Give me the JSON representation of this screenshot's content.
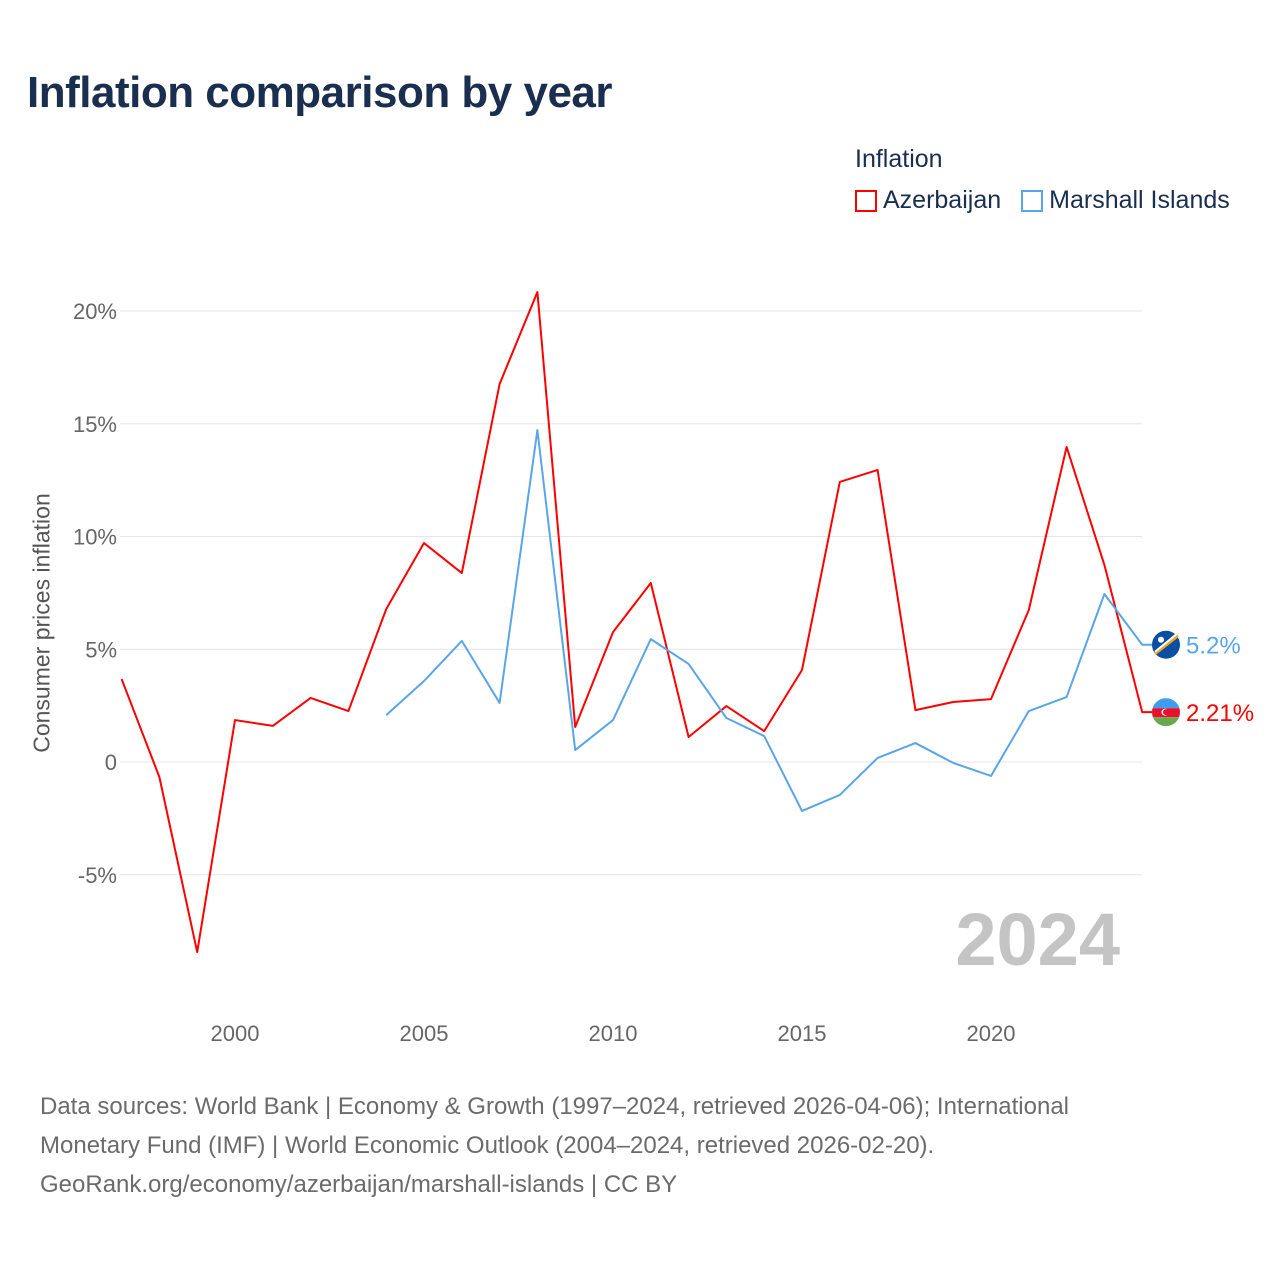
{
  "title": "Inflation comparison by year",
  "legend": {
    "title": "Inflation",
    "items": [
      {
        "name": "Azerbaijan",
        "color": "#ff0000"
      },
      {
        "name": "Marshall Islands",
        "color": "#5aa5e8"
      }
    ]
  },
  "watermark_year": "2024",
  "footer": {
    "line1": "Data sources: World Bank | Economy & Growth (1997–2024, retrieved 2026-04-06); International",
    "line2": "Monetary Fund (IMF) | World Economic Outlook (2004–2024, retrieved 2026-02-20).",
    "line3": "GeoRank.org/economy/azerbaijan/marshall-islands | CC BY"
  },
  "chart_data": {
    "type": "line",
    "title": "Inflation comparison by year",
    "xlabel": "",
    "ylabel": "Consumer prices inflation",
    "xlim": [
      1997,
      2024
    ],
    "ylim": [
      -9,
      21
    ],
    "x_ticks": [
      2000,
      2005,
      2010,
      2015,
      2020
    ],
    "y_ticks": [
      {
        "v": -5,
        "label": "-5%"
      },
      {
        "v": 0,
        "label": "0"
      },
      {
        "v": 5,
        "label": "5%"
      },
      {
        "v": 10,
        "label": "10%"
      },
      {
        "v": 15,
        "label": "15%"
      },
      {
        "v": 20,
        "label": "20%"
      }
    ],
    "grid": true,
    "legend_position": "top-right",
    "series": [
      {
        "name": "Azerbaijan",
        "color": "#ff0000",
        "end_label": "2.21%",
        "x": [
          1997,
          1998,
          1999,
          2000,
          2001,
          2002,
          2003,
          2004,
          2005,
          2006,
          2007,
          2008,
          2009,
          2010,
          2011,
          2012,
          2013,
          2014,
          2015,
          2016,
          2017,
          2018,
          2019,
          2020,
          2021,
          2022,
          2023,
          2024
        ],
        "values": [
          3.68,
          -0.67,
          -8.43,
          1.86,
          1.6,
          2.84,
          2.26,
          6.78,
          9.71,
          8.38,
          16.76,
          20.84,
          1.55,
          5.76,
          7.94,
          1.11,
          2.48,
          1.37,
          4.08,
          12.42,
          12.95,
          2.3,
          2.66,
          2.79,
          6.74,
          13.97,
          8.74,
          2.21
        ]
      },
      {
        "name": "Marshall Islands",
        "color": "#5aa5e8",
        "end_label": "5.2%",
        "x": [
          2004,
          2005,
          2006,
          2007,
          2008,
          2009,
          2010,
          2011,
          2012,
          2013,
          2014,
          2015,
          2016,
          2017,
          2018,
          2019,
          2020,
          2021,
          2022,
          2023,
          2024
        ],
        "values": [
          2.08,
          3.59,
          5.37,
          2.62,
          14.72,
          0.53,
          1.86,
          5.45,
          4.35,
          1.95,
          1.15,
          -2.17,
          -1.46,
          0.18,
          0.84,
          -0.04,
          -0.62,
          2.26,
          2.88,
          7.45,
          5.2
        ]
      }
    ]
  }
}
